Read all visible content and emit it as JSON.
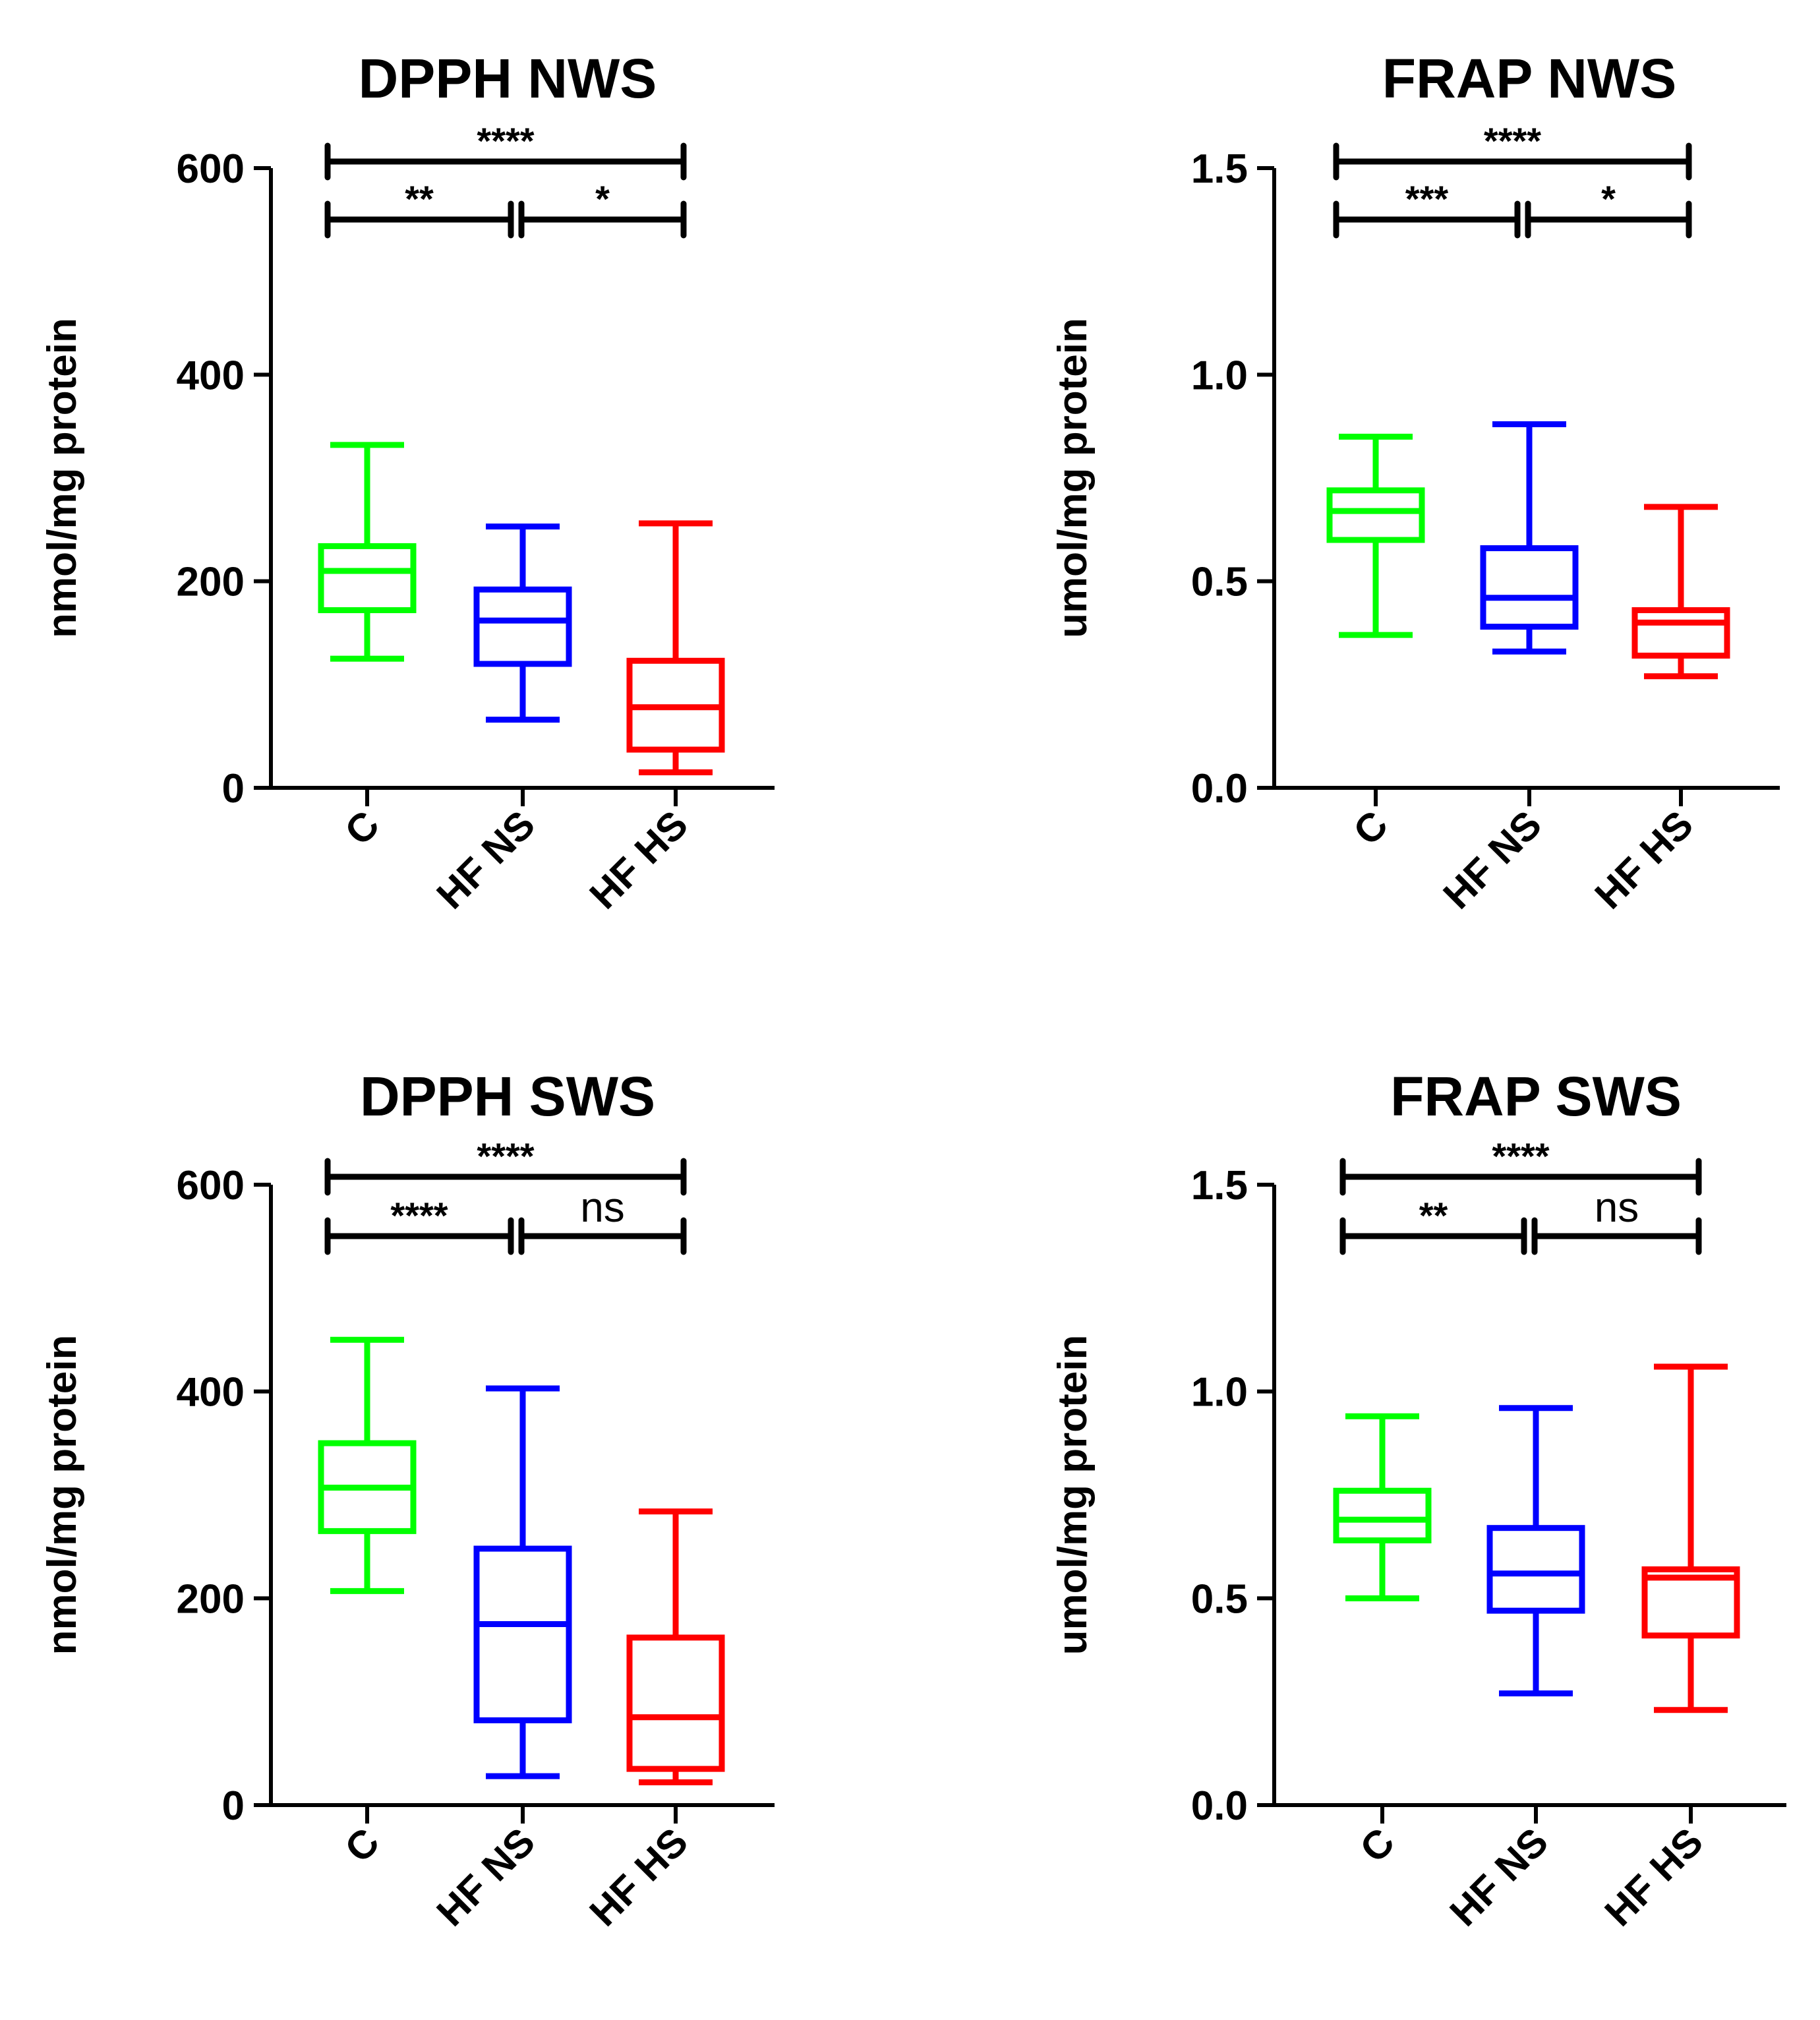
{
  "chart_data": [
    {
      "type": "box",
      "id": "dpph-nws",
      "title": "DPPH NWS",
      "ylabel": "nmol/mg protein",
      "ylim": [
        0,
        600
      ],
      "yticks": [
        0,
        200,
        400,
        600
      ],
      "ytick_labels": [
        "0",
        "200",
        "400",
        "600"
      ],
      "categories": [
        "C",
        "HF NS",
        "HF HS"
      ],
      "colors": [
        "#00ff00",
        "#0000ff",
        "#ff0000"
      ],
      "boxes": [
        {
          "min": 125,
          "q1": 172,
          "median": 210,
          "q3": 234,
          "max": 332
        },
        {
          "min": 66,
          "q1": 120,
          "median": 162,
          "q3": 192,
          "max": 253
        },
        {
          "min": 15,
          "q1": 37,
          "median": 78,
          "q3": 123,
          "max": 256
        }
      ],
      "significance": [
        {
          "from": 0,
          "to": 2,
          "label": "****",
          "level": "top"
        },
        {
          "from": 0,
          "to": 1,
          "label": "**",
          "level": "lower"
        },
        {
          "from": 1,
          "to": 2,
          "label": "*",
          "level": "lower"
        }
      ]
    },
    {
      "type": "box",
      "id": "frap-nws",
      "title": "FRAP NWS",
      "ylabel": "umol/mg protein",
      "ylim": [
        0,
        1.5
      ],
      "yticks": [
        0,
        0.5,
        1.0,
        1.5
      ],
      "ytick_labels": [
        "0.0",
        "0.5",
        "1.0",
        "1.5"
      ],
      "categories": [
        "C",
        "HF NS",
        "HF HS"
      ],
      "colors": [
        "#00ff00",
        "#0000ff",
        "#ff0000"
      ],
      "boxes": [
        {
          "min": 0.37,
          "q1": 0.6,
          "median": 0.67,
          "q3": 0.72,
          "max": 0.85
        },
        {
          "min": 0.33,
          "q1": 0.39,
          "median": 0.46,
          "q3": 0.58,
          "max": 0.88
        },
        {
          "min": 0.27,
          "q1": 0.32,
          "median": 0.4,
          "q3": 0.43,
          "max": 0.68
        }
      ],
      "significance": [
        {
          "from": 0,
          "to": 2,
          "label": "****",
          "level": "top"
        },
        {
          "from": 0,
          "to": 1,
          "label": "***",
          "level": "lower"
        },
        {
          "from": 1,
          "to": 2,
          "label": "*",
          "level": "lower"
        }
      ]
    },
    {
      "type": "box",
      "id": "dpph-sws",
      "title": "DPPH SWS",
      "ylabel": "nmol/mg protein",
      "ylim": [
        0,
        600
      ],
      "yticks": [
        0,
        200,
        400,
        600
      ],
      "ytick_labels": [
        "0",
        "200",
        "400",
        "600"
      ],
      "categories": [
        "C",
        "HF NS",
        "HF HS"
      ],
      "colors": [
        "#00ff00",
        "#0000ff",
        "#ff0000"
      ],
      "boxes": [
        {
          "min": 207,
          "q1": 265,
          "median": 307,
          "q3": 350,
          "max": 450
        },
        {
          "min": 28,
          "q1": 82,
          "median": 175,
          "q3": 248,
          "max": 403
        },
        {
          "min": 22,
          "q1": 35,
          "median": 85,
          "q3": 162,
          "max": 284
        }
      ],
      "significance": [
        {
          "from": 0,
          "to": 2,
          "label": "****",
          "level": "top"
        },
        {
          "from": 0,
          "to": 1,
          "label": "****",
          "level": "lower"
        },
        {
          "from": 1,
          "to": 2,
          "label": "ns",
          "level": "lower"
        }
      ]
    },
    {
      "type": "box",
      "id": "frap-sws",
      "title": "FRAP SWS",
      "ylabel": "umol/mg protein",
      "ylim": [
        0,
        1.5
      ],
      "yticks": [
        0,
        0.5,
        1.0,
        1.5
      ],
      "ytick_labels": [
        "0.0",
        "0.5",
        "1.0",
        "1.5"
      ],
      "categories": [
        "C",
        "HF NS",
        "HF HS"
      ],
      "colors": [
        "#00ff00",
        "#0000ff",
        "#ff0000"
      ],
      "boxes": [
        {
          "min": 0.5,
          "q1": 0.64,
          "median": 0.69,
          "q3": 0.76,
          "max": 0.94
        },
        {
          "min": 0.27,
          "q1": 0.47,
          "median": 0.56,
          "q3": 0.67,
          "max": 0.96
        },
        {
          "min": 0.23,
          "q1": 0.41,
          "median": 0.55,
          "q3": 0.57,
          "max": 1.06
        }
      ],
      "significance": [
        {
          "from": 0,
          "to": 2,
          "label": "****",
          "level": "top"
        },
        {
          "from": 0,
          "to": 1,
          "label": "**",
          "level": "lower"
        },
        {
          "from": 1,
          "to": 2,
          "label": "ns",
          "level": "lower"
        }
      ]
    }
  ]
}
